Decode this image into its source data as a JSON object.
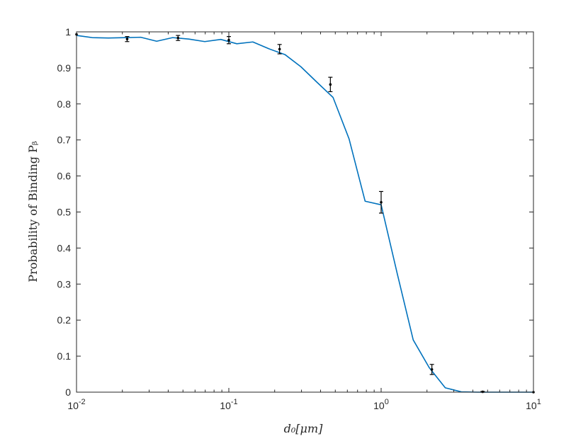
{
  "chart_data": {
    "type": "line",
    "title": "",
    "xlabel": "d₀[μm]",
    "ylabel": "Probability of Binding Pᵦ",
    "xscale": "log",
    "xlim": [
      0.01,
      10
    ],
    "ylim": [
      0,
      1
    ],
    "grid": false,
    "x_tick_labels": [
      {
        "base": "10",
        "exp": "-2"
      },
      {
        "base": "10",
        "exp": "-1"
      },
      {
        "base": "10",
        "exp": "0"
      },
      {
        "base": "10",
        "exp": "1"
      }
    ],
    "y_tick_labels": [
      "0",
      "0.1",
      "0.2",
      "0.3",
      "0.4",
      "0.5",
      "0.6",
      "0.7",
      "0.8",
      "0.9",
      "1"
    ],
    "series": [
      {
        "kind": "line",
        "color": "#0072bd",
        "x": [
          0.01,
          0.0127,
          0.0162,
          0.0207,
          0.0264,
          0.0336,
          0.0428,
          0.0546,
          0.0695,
          0.0886,
          0.1129,
          0.1438,
          0.1833,
          0.2336,
          0.2976,
          0.3793,
          0.4833,
          0.6158,
          0.7848,
          1.0,
          1.274,
          1.624,
          2.069,
          2.637,
          3.36,
          4.281,
          5.456,
          6.952,
          8.859,
          10.0
        ],
        "y": [
          0.99,
          0.984,
          0.983,
          0.984,
          0.985,
          0.974,
          0.984,
          0.98,
          0.973,
          0.979,
          0.967,
          0.972,
          0.953,
          0.937,
          0.903,
          0.86,
          0.818,
          0.703,
          0.53,
          0.52,
          0.33,
          0.145,
          0.068,
          0.012,
          0.001,
          0.0,
          0.0,
          0.0,
          0.0,
          0.0
        ]
      },
      {
        "kind": "errorbar",
        "color": "#000000",
        "x": [
          0.01,
          0.0215,
          0.0464,
          0.1,
          0.2154,
          0.4642,
          1.0,
          2.154,
          4.642,
          10.0
        ],
        "y": [
          0.993,
          0.98,
          0.983,
          0.977,
          0.952,
          0.854,
          0.527,
          0.063,
          0.001,
          0.0
        ],
        "err": [
          0.0,
          0.007,
          0.007,
          0.01,
          0.013,
          0.02,
          0.03,
          0.014,
          0.001,
          0.0
        ]
      }
    ]
  }
}
